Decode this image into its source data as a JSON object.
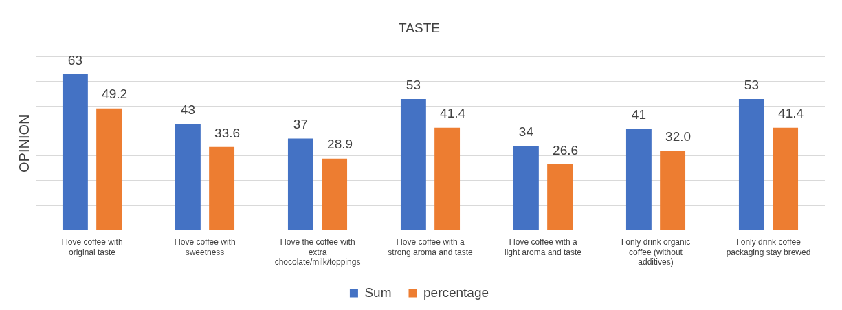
{
  "chart_data": {
    "type": "bar",
    "title": "TASTE",
    "ylabel": "OPINION",
    "categories": [
      "I love coffee with original taste",
      "I love coffee with sweetness",
      "I love the coffee with extra chocolate/milk/toppings",
      "I love coffee with a strong aroma and taste",
      "I love coffee with a light aroma and taste",
      "I only drink organic coffee (without additives)",
      "I only drink coffee packaging stay brewed"
    ],
    "series": [
      {
        "name": "Sum",
        "color": "#4472c4",
        "values": [
          63,
          43,
          37,
          53,
          34,
          41,
          53
        ],
        "value_labels": [
          "63",
          "43",
          "37",
          "53",
          "34",
          "41",
          "53"
        ]
      },
      {
        "name": "percentage",
        "color": "#ed7d31",
        "values": [
          49.2,
          33.6,
          28.9,
          41.4,
          26.6,
          32.0,
          41.4
        ],
        "value_labels": [
          "49.2",
          "33.6",
          "28.9",
          "41.4",
          "26.6",
          "32.0",
          "41.4"
        ]
      }
    ],
    "ylim": [
      0,
      70
    ],
    "yticks": [
      {
        "value": 0,
        "label": null
      },
      {
        "value": 10,
        "label": null
      },
      {
        "value": 20,
        "label": null
      },
      {
        "value": 30,
        "label": null
      },
      {
        "value": 40,
        "label": null
      },
      {
        "value": 50,
        "label": null
      },
      {
        "value": 60,
        "label": null
      },
      {
        "value": 70,
        "label": null
      }
    ],
    "grid": "y",
    "legend": "bottom",
    "tick_labels": "x"
  }
}
